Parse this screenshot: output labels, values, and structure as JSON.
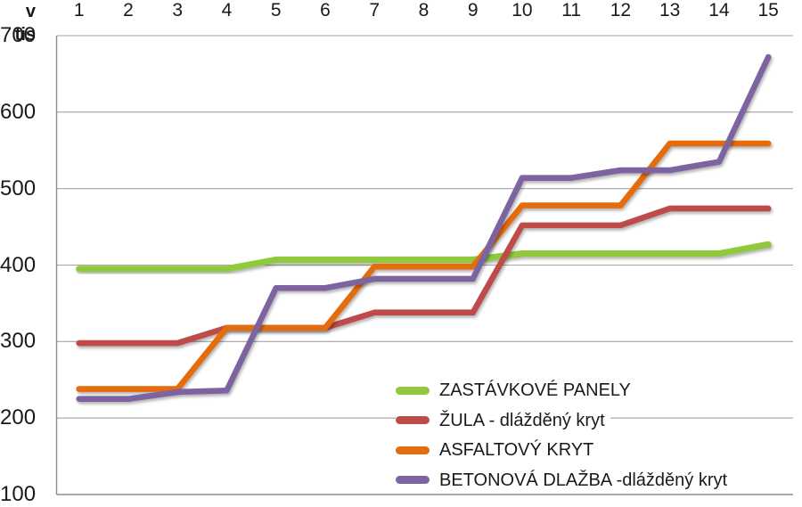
{
  "chart_data": {
    "type": "line",
    "title": "",
    "ylabel": "v tis",
    "categories": [
      "1",
      "2",
      "3",
      "4",
      "5",
      "6",
      "7",
      "8",
      "9",
      "10",
      "11",
      "12",
      "13",
      "14",
      "15"
    ],
    "yticks": [
      "700",
      "600",
      "500",
      "400",
      "300",
      "200",
      "100"
    ],
    "ytick_values": [
      700,
      600,
      500,
      400,
      300,
      200,
      100
    ],
    "ylim": [
      100,
      700
    ],
    "grid": true,
    "legend_position": "inside-bottom-right",
    "series": [
      {
        "name": "ZASTÁVKOVÉ PANELY",
        "color": "#90C93D",
        "values": [
          395,
          395,
          395,
          395,
          407,
          407,
          407,
          407,
          407,
          415,
          415,
          415,
          415,
          415,
          427
        ]
      },
      {
        "name": "ŽULA - dlážděný kryt",
        "color": "#BE4B48",
        "values": [
          298,
          298,
          298,
          318,
          318,
          318,
          338,
          338,
          338,
          452,
          452,
          452,
          474,
          474,
          474
        ]
      },
      {
        "name": "ASFALTOVÝ KRYT",
        "color": "#E46C0A",
        "values": [
          238,
          238,
          238,
          318,
          318,
          318,
          398,
          398,
          398,
          478,
          478,
          478,
          559,
          559,
          559
        ]
      },
      {
        "name": "BETONOVÁ DLAŽBA -dlážděný kryt",
        "color": "#7E63A1",
        "values": [
          225,
          225,
          234,
          236,
          370,
          370,
          382,
          382,
          382,
          514,
          514,
          524,
          524,
          535,
          672
        ]
      }
    ],
    "colors": {
      "grid": "#A3A3A3",
      "axis": "#8C8C8C",
      "text": "#1A1A1A",
      "background": "#FFFFFF"
    }
  }
}
